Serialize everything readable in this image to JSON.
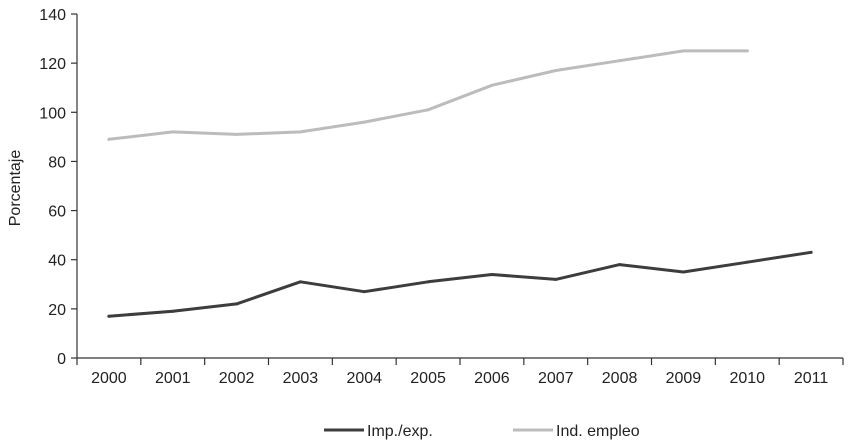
{
  "chart_data": {
    "type": "line",
    "title": "",
    "xlabel": "",
    "ylabel": "Porcentaje",
    "categories": [
      "2000",
      "2001",
      "2002",
      "2003",
      "2004",
      "2005",
      "2006",
      "2007",
      "2008",
      "2009",
      "2010",
      "2011"
    ],
    "ylim": [
      0,
      140
    ],
    "yticks": [
      0,
      20,
      40,
      60,
      80,
      100,
      120,
      140
    ],
    "grid": false,
    "legend": "bottom-center",
    "series": [
      {
        "name": "Imp./exp.",
        "color": "#3d3d3d",
        "values": [
          17,
          19,
          22,
          31,
          27,
          31,
          34,
          32,
          38,
          35,
          39,
          43
        ]
      },
      {
        "name": "Ind. empleo",
        "color": "#bcbcbc",
        "values": [
          89,
          92,
          91,
          92,
          96,
          101,
          111,
          117,
          121,
          125,
          125,
          null
        ]
      }
    ]
  }
}
